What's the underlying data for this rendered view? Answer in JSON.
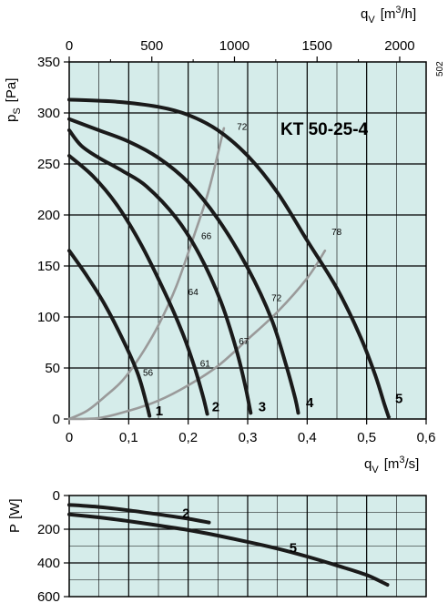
{
  "chart_data": [
    {
      "type": "line",
      "title": "KT 50-25-4",
      "side_code": "502",
      "xlabel": "q_V [m³/s]",
      "xlabel_parts": {
        "q": "q",
        "sub": "V",
        "unit": "[m",
        "sup": "3",
        "unit_end": "/s]"
      },
      "x2label_parts": {
        "q": "q",
        "sub": "V",
        "unit": "[m",
        "sup": "3",
        "unit_end": "/h]"
      },
      "ylabel_parts": {
        "p": "p",
        "sub": "S",
        "unit": "[Pa]"
      },
      "xlim": [
        0,
        0.6
      ],
      "ylim": [
        0,
        350
      ],
      "x2lim": [
        0,
        2160
      ],
      "x_ticks": [
        0,
        0.1,
        0.2,
        0.3,
        0.4,
        0.5,
        0.6
      ],
      "x_tick_labels": [
        "0",
        "0,1",
        "0,2",
        "0,3",
        "0,4",
        "0,5",
        "0,6"
      ],
      "x2_ticks": [
        0,
        500,
        1000,
        1500,
        2000
      ],
      "x2_tick_labels": [
        "0",
        "500",
        "1000",
        "1500",
        "2000"
      ],
      "y_ticks": [
        0,
        50,
        100,
        150,
        200,
        250,
        300,
        350
      ],
      "y_tick_labels": [
        "0",
        "50",
        "100",
        "150",
        "200",
        "250",
        "300",
        "350"
      ],
      "grid": true,
      "series": [
        {
          "name": "1",
          "label_at": [
            0.145,
            8
          ],
          "points": [
            [
              0.0,
              165
            ],
            [
              0.03,
              140
            ],
            [
              0.06,
              112
            ],
            [
              0.09,
              78
            ],
            [
              0.115,
              45
            ],
            [
              0.13,
              15
            ],
            [
              0.135,
              3
            ]
          ]
        },
        {
          "name": "2",
          "label_at": [
            0.24,
            12
          ],
          "points": [
            [
              0.0,
              258
            ],
            [
              0.04,
              238
            ],
            [
              0.08,
              210
            ],
            [
              0.12,
              172
            ],
            [
              0.16,
              125
            ],
            [
              0.19,
              85
            ],
            [
              0.21,
              52
            ],
            [
              0.225,
              22
            ],
            [
              0.232,
              5
            ]
          ]
        },
        {
          "name": "3",
          "label_at": [
            0.318,
            12
          ],
          "points": [
            [
              0.0,
              283
            ],
            [
              0.02,
              268
            ],
            [
              0.05,
              256
            ],
            [
              0.09,
              243
            ],
            [
              0.13,
              228
            ],
            [
              0.18,
              197
            ],
            [
              0.22,
              160
            ],
            [
              0.255,
              115
            ],
            [
              0.28,
              70
            ],
            [
              0.295,
              35
            ],
            [
              0.305,
              6
            ]
          ]
        },
        {
          "name": "4",
          "label_at": [
            0.398,
            16
          ],
          "points": [
            [
              0.0,
              294
            ],
            [
              0.05,
              283
            ],
            [
              0.1,
              272
            ],
            [
              0.15,
              256
            ],
            [
              0.2,
              232
            ],
            [
              0.25,
              196
            ],
            [
              0.3,
              148
            ],
            [
              0.34,
              98
            ],
            [
              0.365,
              52
            ],
            [
              0.38,
              20
            ],
            [
              0.385,
              6
            ]
          ]
        },
        {
          "name": "5",
          "label_at": [
            0.548,
            20
          ],
          "points": [
            [
              0.0,
              313
            ],
            [
              0.08,
              311
            ],
            [
              0.15,
              306
            ],
            [
              0.2,
              298
            ],
            [
              0.25,
              283
            ],
            [
              0.3,
              258
            ],
            [
              0.35,
              222
            ],
            [
              0.4,
              175
            ],
            [
              0.45,
              128
            ],
            [
              0.49,
              80
            ],
            [
              0.515,
              42
            ],
            [
              0.53,
              14
            ],
            [
              0.537,
              2
            ]
          ]
        }
      ],
      "efficiency_curves": [
        {
          "name": "left",
          "color": "#9a9a9a",
          "points": [
            [
              0.0,
              0
            ],
            [
              0.03,
              8
            ],
            [
              0.06,
              22
            ],
            [
              0.09,
              38
            ],
            [
              0.12,
              62
            ],
            [
              0.15,
              92
            ],
            [
              0.18,
              130
            ],
            [
              0.21,
              180
            ],
            [
              0.235,
              225
            ],
            [
              0.26,
              285
            ]
          ]
        },
        {
          "name": "right",
          "color": "#9a9a9a",
          "points": [
            [
              0.0,
              0
            ],
            [
              0.05,
              1
            ],
            [
              0.1,
              8
            ],
            [
              0.15,
              18
            ],
            [
              0.2,
              33
            ],
            [
              0.25,
              52
            ],
            [
              0.3,
              78
            ],
            [
              0.35,
              105
            ],
            [
              0.4,
              138
            ],
            [
              0.43,
              165
            ]
          ]
        }
      ],
      "efficiency_labels": [
        {
          "text": "72",
          "at": [
            0.282,
            287
          ]
        },
        {
          "text": "66",
          "at": [
            0.222,
            180
          ]
        },
        {
          "text": "64",
          "at": [
            0.2,
            125
          ]
        },
        {
          "text": "56",
          "at": [
            0.124,
            46
          ]
        },
        {
          "text": "61",
          "at": [
            0.22,
            55
          ]
        },
        {
          "text": "67",
          "at": [
            0.285,
            77
          ]
        },
        {
          "text": "72",
          "at": [
            0.34,
            119
          ]
        },
        {
          "text": "78",
          "at": [
            0.441,
            184
          ]
        }
      ]
    },
    {
      "type": "line",
      "ylabel_parts": {
        "p": "P",
        "unit": "[W]"
      },
      "xlim": [
        0,
        0.6
      ],
      "ylim": [
        0,
        600
      ],
      "y_inverted": true,
      "y_ticks": [
        0,
        200,
        400,
        600
      ],
      "y_tick_labels": [
        "0",
        "200",
        "400",
        "600"
      ],
      "x_ticks": [
        0,
        0.1,
        0.2,
        0.3,
        0.4,
        0.5,
        0.6
      ],
      "grid": true,
      "series": [
        {
          "name": "2",
          "label_at": [
            0.19,
            105
          ],
          "points": [
            [
              0.0,
              55
            ],
            [
              0.05,
              68
            ],
            [
              0.1,
              88
            ],
            [
              0.15,
              112
            ],
            [
              0.2,
              138
            ],
            [
              0.235,
              160
            ]
          ]
        },
        {
          "name": "5",
          "label_at": [
            0.37,
            310
          ],
          "points": [
            [
              0.0,
              112
            ],
            [
              0.05,
              130
            ],
            [
              0.1,
              152
            ],
            [
              0.15,
              178
            ],
            [
              0.2,
              205
            ],
            [
              0.25,
              238
            ],
            [
              0.3,
              275
            ],
            [
              0.35,
              315
            ],
            [
              0.4,
              362
            ],
            [
              0.45,
              415
            ],
            [
              0.5,
              472
            ],
            [
              0.535,
              530
            ]
          ]
        }
      ]
    }
  ]
}
